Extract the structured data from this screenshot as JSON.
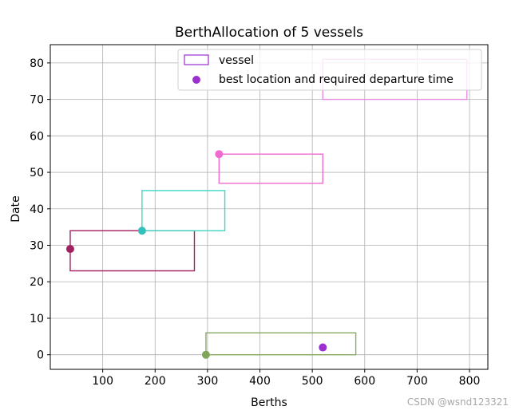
{
  "chart_data": {
    "type": "scatter",
    "title": "BerthAllocation of 5 vessels",
    "xlabel": "Berths",
    "ylabel": "Date",
    "xlim": [
      0,
      835
    ],
    "ylim": [
      -4,
      85
    ],
    "xticks": [
      100,
      200,
      300,
      400,
      500,
      600,
      700,
      800
    ],
    "yticks": [
      0,
      10,
      20,
      30,
      40,
      50,
      60,
      70,
      80
    ],
    "grid": true,
    "legend_position": "top-right",
    "legend": [
      {
        "label": "vessel",
        "marker": "rectangle",
        "color": "#9b30d0"
      },
      {
        "label": "best location and required departure time",
        "marker": "point",
        "color": "#9b30d0"
      }
    ],
    "vessels": [
      {
        "x_start": 297,
        "x_end": 583,
        "y_start": 0,
        "y_end": 6,
        "color": "#8aa965"
      },
      {
        "x_start": 38,
        "x_end": 275,
        "y_start": 23,
        "y_end": 34,
        "color": "#a3205f"
      },
      {
        "x_start": 175,
        "x_end": 333,
        "y_start": 34,
        "y_end": 45,
        "color": "#3fd6c4"
      },
      {
        "x_start": 322,
        "x_end": 520,
        "y_start": 47,
        "y_end": 55,
        "color": "#f06bd0"
      },
      {
        "x_start": 520,
        "x_end": 795,
        "y_start": 70,
        "y_end": 81,
        "color": "#e98ae6"
      }
    ],
    "points": [
      {
        "x": 297,
        "y": 0,
        "color": "#7fa45a"
      },
      {
        "x": 38,
        "y": 29,
        "color": "#a3205f"
      },
      {
        "x": 175,
        "y": 34,
        "color": "#35c0be"
      },
      {
        "x": 322,
        "y": 55,
        "color": "#f06bd0"
      },
      {
        "x": 520,
        "y": 2,
        "color": "#9b30d0"
      }
    ]
  },
  "watermark": "CSDN @wsnd123321"
}
